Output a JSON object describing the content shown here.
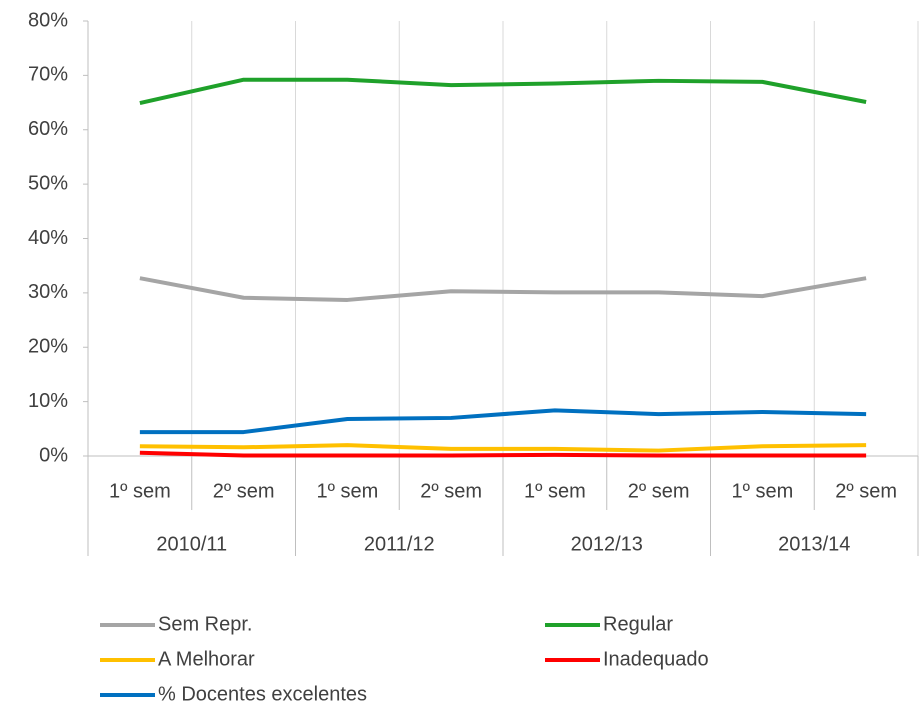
{
  "chart_data": {
    "type": "line",
    "categories": [
      "1º sem",
      "2º sem",
      "1º sem",
      "2º sem",
      "1º sem",
      "2º sem",
      "1º sem",
      "2º sem"
    ],
    "category_groups": [
      "2010/11",
      "2011/12",
      "2012/13",
      "2013/14"
    ],
    "series": [
      {
        "name": "Sem Repr.",
        "color": "#a5a5a5",
        "values": [
          32.7,
          29.1,
          28.7,
          30.3,
          30.1,
          30.1,
          29.4,
          32.7
        ]
      },
      {
        "name": "Regular",
        "color": "#1fa12a",
        "values": [
          64.9,
          69.2,
          69.2,
          68.2,
          68.5,
          69.0,
          68.8,
          65.1
        ]
      },
      {
        "name": "A Melhorar",
        "color": "#ffc000",
        "values": [
          1.8,
          1.6,
          2.0,
          1.3,
          1.3,
          1.0,
          1.8,
          2.0
        ]
      },
      {
        "name": "Inadequado",
        "color": "#ff0000",
        "values": [
          0.6,
          0.1,
          0.1,
          0.1,
          0.2,
          0.1,
          0.1,
          0.1
        ]
      },
      {
        "name": "% Docentes excelentes",
        "color": "#0070c0",
        "values": [
          4.4,
          4.4,
          6.8,
          7.0,
          8.4,
          7.7,
          8.1,
          7.7
        ]
      }
    ],
    "ylim": [
      0,
      80
    ],
    "yticks": [
      {
        "value": 0,
        "label": "0%"
      },
      {
        "value": 10,
        "label": "10%"
      },
      {
        "value": 20,
        "label": "20%"
      },
      {
        "value": 30,
        "label": "30%"
      },
      {
        "value": 40,
        "label": "40%"
      },
      {
        "value": 50,
        "label": "50%"
      },
      {
        "value": 60,
        "label": "60%"
      },
      {
        "value": 70,
        "label": "70%"
      },
      {
        "value": 80,
        "label": "80%"
      }
    ],
    "grid": "vertical",
    "legend": "bottom"
  }
}
